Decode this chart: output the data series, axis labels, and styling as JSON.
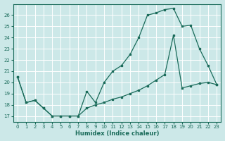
{
  "title": "",
  "xlabel": "Humidex (Indice chaleur)",
  "ylabel": "",
  "background_color": "#cce8e8",
  "grid_color": "#b0d4d4",
  "line_color": "#1a6b5a",
  "xlim": [
    -0.5,
    23.5
  ],
  "ylim": [
    16.5,
    27.0
  ],
  "yticks": [
    17,
    18,
    19,
    20,
    21,
    22,
    23,
    24,
    25,
    26
  ],
  "xticks": [
    0,
    1,
    2,
    3,
    4,
    5,
    6,
    7,
    8,
    9,
    10,
    11,
    12,
    13,
    14,
    15,
    16,
    17,
    18,
    19,
    20,
    21,
    22,
    23
  ],
  "series1_x": [
    0,
    1,
    2,
    3,
    4,
    5,
    6,
    7,
    8,
    9,
    10,
    11,
    12,
    13,
    14,
    15,
    16,
    17,
    18,
    19,
    20,
    21,
    22,
    23
  ],
  "series1_y": [
    20.5,
    18.2,
    18.4,
    17.7,
    17.0,
    17.0,
    17.0,
    17.0,
    19.2,
    18.2,
    20.0,
    21.0,
    21.5,
    22.5,
    24.0,
    26.0,
    26.2,
    26.5,
    26.6,
    25.0,
    25.1,
    23.0,
    21.5,
    19.8
  ],
  "series2_x": [
    0,
    1,
    2,
    3,
    4,
    5,
    6,
    7,
    8,
    9,
    10,
    11,
    12,
    13,
    14,
    15,
    16,
    17,
    18,
    19,
    20,
    21,
    22,
    23
  ],
  "series2_y": [
    20.5,
    18.2,
    18.4,
    17.7,
    17.0,
    17.0,
    17.0,
    17.0,
    17.7,
    18.0,
    18.2,
    18.5,
    18.7,
    19.0,
    19.3,
    19.7,
    20.2,
    20.7,
    24.2,
    19.5,
    19.7,
    19.9,
    20.0,
    19.8
  ]
}
